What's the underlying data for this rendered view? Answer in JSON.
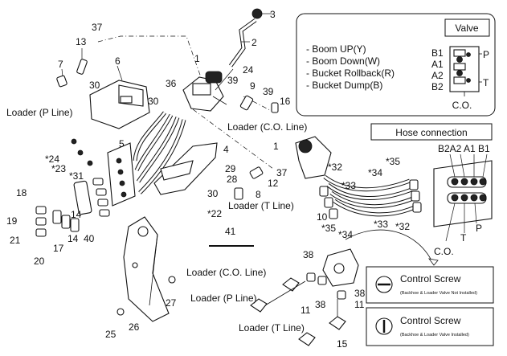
{
  "valve_legend": {
    "title": "Valve",
    "items": [
      "- Boom UP(Y)",
      "- Boom Down(W)",
      "- Bucket Rollback(R)",
      "- Bucket Dump(B)"
    ],
    "ports_left": [
      "B1",
      "A1",
      "A2",
      "B2"
    ],
    "ports_right": [
      "P",
      "T"
    ],
    "co_label": "C.O."
  },
  "hose_connection": {
    "title": "Hose connection",
    "port_labels": "B2A2 A1 B1",
    "t_label": "T",
    "p_label": "P",
    "co_label": "C.O."
  },
  "control_screws": [
    {
      "title": "Control Screw",
      "note": "(Backhoe & Loader Valve Not Installed)"
    },
    {
      "title": "Control Screw",
      "note": "(Backhoe & Loader Valve Installed)"
    }
  ],
  "line_labels": {
    "loader_p_top": "Loader (P Line)",
    "loader_co_top": "Loader (C.O. Line)",
    "loader_t_mid": "Loader (T Line)",
    "loader_co_bottom": "Loader (C.O. Line)",
    "loader_p_bottom": "Loader (P Line)",
    "loader_t_bottom": "Loader (T Line)"
  },
  "callouts": {
    "c3": "3",
    "c2": "2",
    "c37a": "37",
    "c13": "13",
    "c7": "7",
    "c6": "6",
    "c1a": "1",
    "c24a": "24",
    "c39a": "39",
    "c36": "36",
    "c30a": "30",
    "c30b": "30",
    "c9": "9",
    "c39b": "39",
    "c16": "16",
    "c5": "5",
    "c4": "4",
    "c24b": "*24",
    "c23": "*23",
    "c31": "*31",
    "c29": "29",
    "c28": "28",
    "c37b": "37",
    "c12": "12",
    "c30c": "30",
    "c8": "8",
    "c22": "*22",
    "c18": "18",
    "c19": "19",
    "c21": "21",
    "c20": "20",
    "c14a": "14",
    "c14b": "14",
    "c17": "17",
    "c40": "40",
    "c1b": "1",
    "c32a": "*32",
    "c33a": "*33",
    "c35a": "*35",
    "c34a": "*34",
    "c10": "10",
    "c35b": "*35",
    "c34b": "*34",
    "c33b": "*33",
    "c32b": "*32",
    "c41": "41",
    "c38a": "38",
    "c38b": "38",
    "c38c": "38",
    "c11a": "11",
    "c11b": "11",
    "c27": "27",
    "c25": "25",
    "c26": "26",
    "c15": "15"
  }
}
